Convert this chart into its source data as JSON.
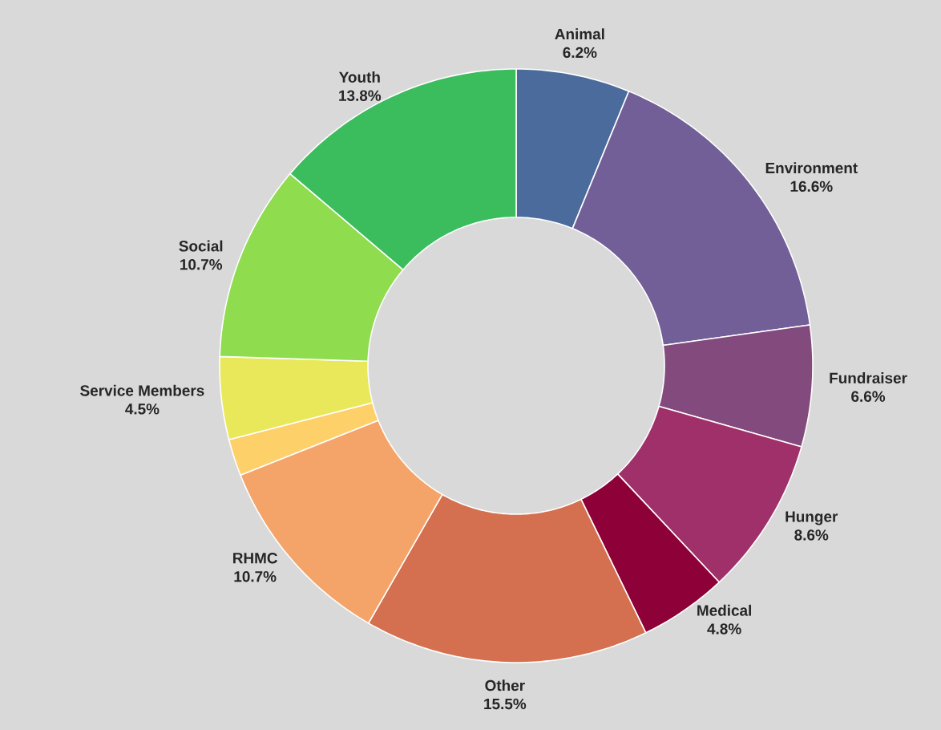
{
  "chart_data": {
    "type": "donut",
    "categories": [
      "Animal",
      "Environment",
      "Fundraiser",
      "Hunger",
      "Medical",
      "Other",
      "RHMC",
      null,
      "Service Members",
      "Social",
      "Youth"
    ],
    "values": [
      6.2,
      16.6,
      6.6,
      8.6,
      4.8,
      15.5,
      10.7,
      2.0,
      4.5,
      10.7,
      13.8
    ],
    "value_labels": [
      "6.2%",
      "16.6%",
      "6.6%",
      "8.6%",
      "4.8%",
      "15.5%",
      "10.7%",
      null,
      "4.5%",
      "10.7%",
      "13.8%"
    ],
    "colors": [
      "#4a6b9b",
      "#735f97",
      "#834a7e",
      "#a0306a",
      "#8e0038",
      "#d4704f",
      "#f4a468",
      "#fdd06a",
      "#e8e85a",
      "#8fdc4f",
      "#3bbd5e"
    ]
  }
}
